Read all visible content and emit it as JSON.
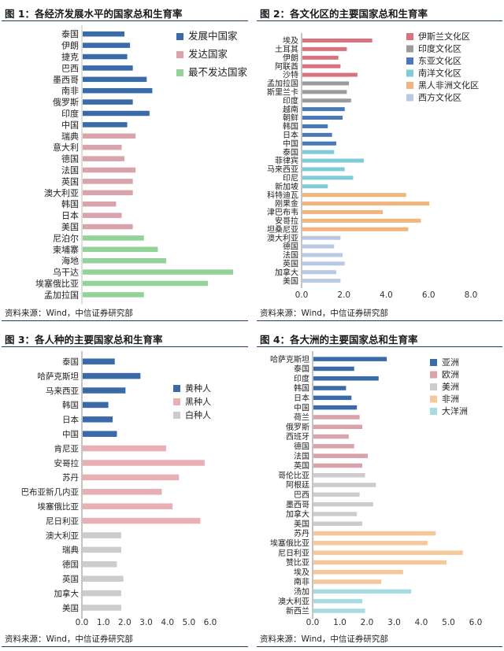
{
  "colors": {
    "blue": "#3a6aa8",
    "pink": "#d9a3ab",
    "green": "#93d399",
    "red": "#d9727f",
    "gray": "#9b9b9b",
    "midblue": "#4a79b9",
    "cyan": "#7fcbd8",
    "orange": "#f3b57f",
    "lightblue": "#b9c8e3",
    "lightgray": "#cccccc",
    "lightpink": "#e8b0b5",
    "peach": "#f7c79c",
    "teal": "#a6dbe2"
  },
  "source_text": "资料来源：Wind，中信证券研究部",
  "chart_data": [
    {
      "type": "bar",
      "orientation": "horizontal",
      "title": "图 1：各经济发展水平的国家总和生育率",
      "categories": [
        "泰国",
        "伊朗",
        "捷克",
        "巴西",
        "墨西哥",
        "南非",
        "俄罗斯",
        "印度",
        "中国",
        "瑞典",
        "意大利",
        "德国",
        "法国",
        "英国",
        "澳大利亚",
        "韩国",
        "日本",
        "美国",
        "尼泊尔",
        "柬埔寨",
        "海地",
        "乌干达",
        "埃塞俄比亚",
        "孟加拉国"
      ],
      "values": [
        1.5,
        1.7,
        1.6,
        1.8,
        2.3,
        2.5,
        1.8,
        2.4,
        1.6,
        1.9,
        1.4,
        1.5,
        1.9,
        1.8,
        1.8,
        1.2,
        1.4,
        1.8,
        2.2,
        2.7,
        3.0,
        5.4,
        4.5,
        2.2
      ],
      "groups": [
        0,
        0,
        0,
        0,
        0,
        0,
        0,
        0,
        0,
        1,
        1,
        1,
        1,
        1,
        1,
        1,
        1,
        1,
        2,
        2,
        2,
        2,
        2,
        2
      ],
      "legend": [
        "发展中国家",
        "发达国家",
        "最不发达国家"
      ],
      "legend_colors": [
        "#3a6aa8",
        "#d9a3ab",
        "#93d399"
      ],
      "xlim": [
        0,
        5.6
      ]
    },
    {
      "type": "bar",
      "orientation": "horizontal",
      "title": "图 2：各文化区的主要国家总和生育率",
      "categories": [
        "埃及",
        "土耳其",
        "伊朗",
        "阿联酋",
        "沙特",
        "孟加拉国",
        "斯里兰卡",
        "印度",
        "越南",
        "朝鲜",
        "韩国",
        "日本",
        "中国",
        "泰国",
        "菲律宾",
        "马来西亚",
        "印尼",
        "新加坡",
        "科特迪瓦",
        "刚果金",
        "津巴布韦",
        "安哥拉",
        "坦桑尼亚",
        "澳大利亚",
        "德国",
        "法国",
        "英国",
        "加拿大",
        "美国"
      ],
      "values": [
        3.3,
        2.1,
        1.7,
        1.8,
        2.6,
        2.2,
        2.1,
        2.3,
        2.0,
        1.9,
        1.2,
        1.4,
        1.6,
        1.5,
        2.9,
        2.0,
        2.4,
        1.2,
        4.9,
        6.0,
        3.8,
        5.6,
        5.0,
        1.8,
        1.5,
        1.9,
        2.0,
        1.6,
        1.8
      ],
      "groups": [
        0,
        0,
        0,
        0,
        0,
        1,
        1,
        1,
        2,
        2,
        2,
        2,
        2,
        3,
        3,
        3,
        3,
        3,
        4,
        4,
        4,
        4,
        4,
        5,
        5,
        5,
        5,
        5,
        5
      ],
      "legend": [
        "伊斯兰文化区",
        "印度文化区",
        "东亚文化区",
        "南洋文化区",
        "黑人非洲文化区",
        "西方文化区"
      ],
      "legend_colors": [
        "#d9727f",
        "#9b9b9b",
        "#4a79b9",
        "#7fcbd8",
        "#f3b57f",
        "#b9c8e3"
      ],
      "ticks": [
        "0.0",
        "2.0",
        "4.0",
        "6.0",
        "8.0"
      ],
      "xlim": [
        0,
        8.0
      ]
    },
    {
      "type": "bar",
      "orientation": "horizontal",
      "title": "图 3：各人种的主要国家总和生育率",
      "categories": [
        "泰国",
        "哈萨克斯坦",
        "马来西亚",
        "韩国",
        "日本",
        "中国",
        "肯尼亚",
        "安哥拉",
        "苏丹",
        "巴布亚新几内亚",
        "埃塞俄比亚",
        "尼日利亚",
        "澳大利亚",
        "瑞典",
        "德国",
        "英国",
        "加拿大",
        "美国"
      ],
      "values": [
        1.5,
        2.7,
        2.0,
        1.2,
        1.4,
        1.6,
        3.9,
        5.7,
        4.5,
        3.7,
        4.2,
        5.5,
        1.8,
        1.8,
        1.6,
        1.9,
        1.8,
        1.8
      ],
      "groups": [
        0,
        0,
        0,
        0,
        0,
        0,
        1,
        1,
        1,
        1,
        1,
        1,
        2,
        2,
        2,
        2,
        2,
        2
      ],
      "legend": [
        "黄种人",
        "黑种人",
        "白种人"
      ],
      "legend_colors": [
        "#3a6aa8",
        "#e8b0b5",
        "#cccccc"
      ],
      "ticks": [
        "0.0",
        "1.0",
        "2.0",
        "3.0",
        "4.0",
        "5.0",
        "6.0"
      ],
      "xlim": [
        0,
        6.0
      ]
    },
    {
      "type": "bar",
      "orientation": "horizontal",
      "title": "图 4：各大洲的主要国家总和生育率",
      "categories": [
        "哈萨克斯坦",
        "泰国",
        "印度",
        "韩国",
        "日本",
        "中国",
        "荷兰",
        "俄罗斯",
        "西班牙",
        "德国",
        "法国",
        "英国",
        "哥伦比亚",
        "阿根廷",
        "巴西",
        "墨西哥",
        "加拿大",
        "美国",
        "苏丹",
        "埃塞俄比亚",
        "尼日利亚",
        "赞比亚",
        "埃及",
        "南非",
        "汤加",
        "澳大利亚",
        "新西兰"
      ],
      "values": [
        2.7,
        1.5,
        2.4,
        1.2,
        1.4,
        1.6,
        1.7,
        1.8,
        1.3,
        1.5,
        2.0,
        1.8,
        1.9,
        2.3,
        1.7,
        2.2,
        1.6,
        1.8,
        4.5,
        4.2,
        5.5,
        4.9,
        3.3,
        2.5,
        3.6,
        1.8,
        1.9
      ],
      "groups": [
        0,
        0,
        0,
        0,
        0,
        0,
        1,
        1,
        1,
        1,
        1,
        1,
        2,
        2,
        2,
        2,
        2,
        2,
        3,
        3,
        3,
        3,
        3,
        3,
        4,
        4,
        4
      ],
      "legend": [
        "亚洲",
        "欧洲",
        "美洲",
        "非洲",
        "大洋洲"
      ],
      "legend_colors": [
        "#3a6aa8",
        "#d9a3ab",
        "#cccccc",
        "#f7c79c",
        "#a6dbe2"
      ],
      "ticks": [
        "0.0",
        "1.0",
        "2.0",
        "3.0",
        "4.0",
        "5.0",
        "6.0"
      ],
      "xlim": [
        0,
        6.0
      ]
    }
  ]
}
